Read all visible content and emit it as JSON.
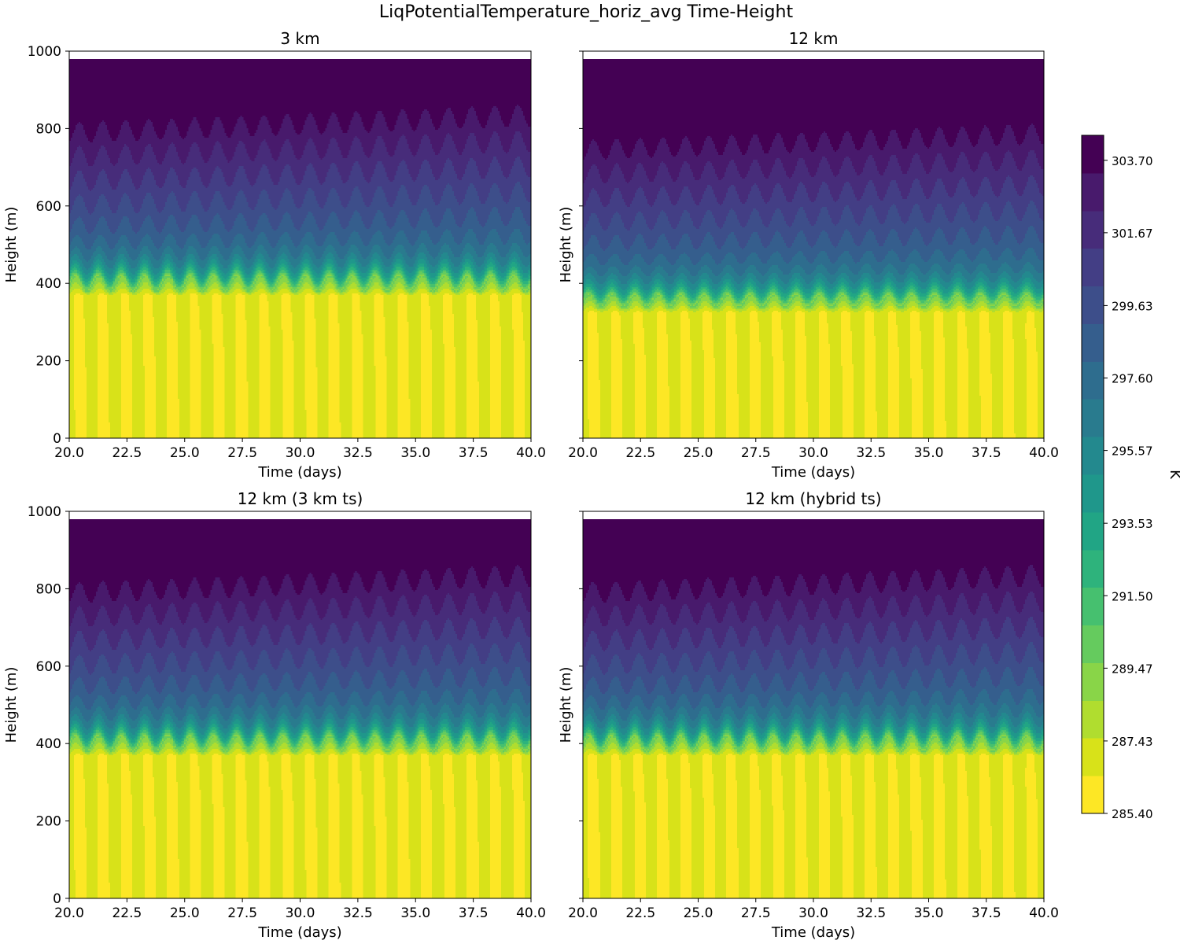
{
  "figure_title": "LiqPotentialTemperature_horiz_avg Time-Height",
  "chart_data": [
    {
      "type": "contourf",
      "title": "3 km",
      "xlabel": "Time (days)",
      "ylabel": "Height (m)",
      "xlim": [
        20.0,
        40.0
      ],
      "ylim": [
        0,
        1000
      ],
      "x_ticks": [
        "20.0",
        "22.5",
        "25.0",
        "27.5",
        "30.0",
        "32.5",
        "35.0",
        "37.5",
        "40.0"
      ],
      "y_ticks": [
        "0",
        "200",
        "400",
        "600",
        "800",
        "1000"
      ],
      "data_top_m": 980,
      "inversion_height_m": 400,
      "inversion_wave_amplitude_m": 20,
      "surface_layer_top_m": 370,
      "diurnal_cycles": 20,
      "field_min_K": 285.4,
      "field_max_K": 304.4
    },
    {
      "type": "contourf",
      "title": "12 km",
      "xlabel": "Time (days)",
      "ylabel": "Height (m)",
      "xlim": [
        20.0,
        40.0
      ],
      "ylim": [
        0,
        1000
      ],
      "x_ticks": [
        "20.0",
        "22.5",
        "25.0",
        "27.5",
        "30.0",
        "32.5",
        "35.0",
        "37.5",
        "40.0"
      ],
      "y_ticks": [
        "0",
        "200",
        "400",
        "600",
        "800",
        "1000"
      ],
      "data_top_m": 980,
      "inversion_height_m": 355,
      "inversion_wave_amplitude_m": 15,
      "surface_layer_top_m": 325,
      "diurnal_cycles": 20,
      "field_min_K": 285.4,
      "field_max_K": 304.4
    },
    {
      "type": "contourf",
      "title": "12 km (3 km ts)",
      "xlabel": "Time (days)",
      "ylabel": "Height (m)",
      "xlim": [
        20.0,
        40.0
      ],
      "ylim": [
        0,
        1000
      ],
      "x_ticks": [
        "20.0",
        "22.5",
        "25.0",
        "27.5",
        "30.0",
        "32.5",
        "35.0",
        "37.5",
        "40.0"
      ],
      "y_ticks": [
        "0",
        "200",
        "400",
        "600",
        "800",
        "1000"
      ],
      "data_top_m": 980,
      "inversion_height_m": 400,
      "inversion_wave_amplitude_m": 20,
      "surface_layer_top_m": 370,
      "diurnal_cycles": 20,
      "field_min_K": 285.4,
      "field_max_K": 304.4
    },
    {
      "type": "contourf",
      "title": "12 km (hybrid ts)",
      "xlabel": "Time (days)",
      "ylabel": "Height (m)",
      "xlim": [
        20.0,
        40.0
      ],
      "ylim": [
        0,
        1000
      ],
      "x_ticks": [
        "20.0",
        "22.5",
        "25.0",
        "27.5",
        "30.0",
        "32.5",
        "35.0",
        "37.5",
        "40.0"
      ],
      "y_ticks": [
        "0",
        "200",
        "400",
        "600",
        "800",
        "1000"
      ],
      "data_top_m": 980,
      "inversion_height_m": 400,
      "inversion_wave_amplitude_m": 20,
      "surface_layer_top_m": 370,
      "diurnal_cycles": 20,
      "field_min_K": 285.4,
      "field_max_K": 304.4
    }
  ],
  "colorbar": {
    "label": "K",
    "min": 285.4,
    "max": 304.4,
    "ticks": [
      "285.40",
      "287.43",
      "289.47",
      "291.50",
      "293.53",
      "295.57",
      "297.60",
      "299.63",
      "301.67",
      "303.70"
    ],
    "tick_values": [
      285.4,
      287.43,
      289.47,
      291.5,
      293.53,
      295.57,
      297.6,
      299.63,
      301.67,
      303.7
    ],
    "colors": [
      "#fde725",
      "#d8e219",
      "#b0dd2f",
      "#89d548",
      "#65cb5e",
      "#46c06f",
      "#2eb37c",
      "#21a585",
      "#1f978b",
      "#23898e",
      "#297b8e",
      "#2e6d8e",
      "#355e8d",
      "#3d4e8a",
      "#433e85",
      "#472c7a",
      "#481a6c",
      "#440154"
    ]
  }
}
